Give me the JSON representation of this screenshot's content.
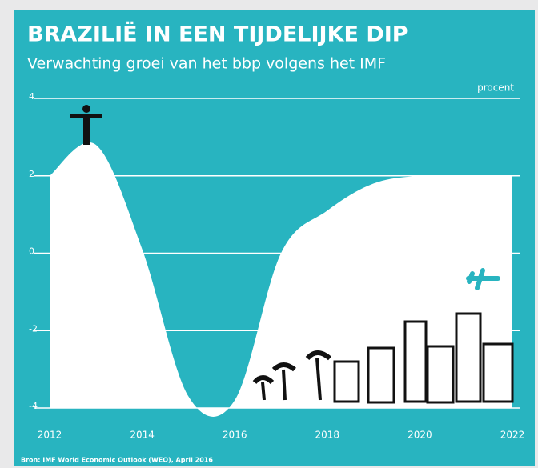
{
  "chart_data": {
    "type": "area",
    "title": "BRAZILIË IN EEN TIJDELIJKE DIP",
    "subtitle": "Verwachting groei van het bbp volgens het IMF",
    "y_unit": "procent",
    "source": "Bron: IMF World Economic Outlook (WEO), April 2016",
    "x": [
      2012,
      2013,
      2014,
      2015,
      2016,
      2017,
      2018,
      2019,
      2020,
      2021,
      2022
    ],
    "values": [
      2.0,
      2.8,
      0.1,
      -3.7,
      -3.8,
      0.0,
      1.1,
      1.8,
      2.0,
      2.0,
      2.0
    ],
    "color": "#ffffff",
    "background": "#28b4c0",
    "xlim": [
      2012,
      2022
    ],
    "xticks": [
      2012,
      2014,
      2016,
      2018,
      2020,
      2022
    ],
    "ylim": [
      -4,
      4
    ],
    "yticks": [
      4,
      2,
      0,
      -2,
      -4
    ],
    "grid": true
  }
}
